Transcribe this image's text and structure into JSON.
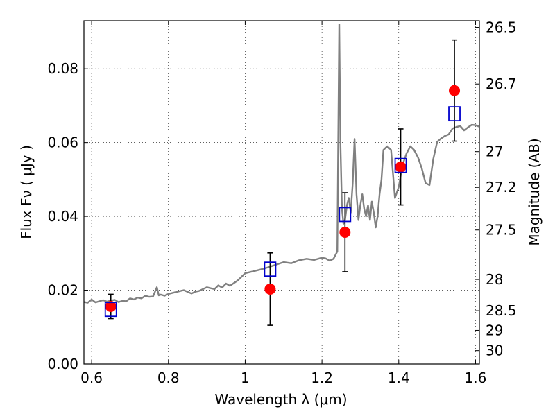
{
  "chart_data": {
    "type": "scatter",
    "xlabel": "Wavelength  λ (μm)",
    "ylabel": "Flux  Fν  ( μJy )",
    "ylabel_right": "Magnitude (AB)",
    "xlim": [
      0.58,
      1.61
    ],
    "ylim": [
      0.0,
      0.093
    ],
    "grid": true,
    "x_ticks": [
      0.6,
      0.8,
      1.0,
      1.2,
      1.4,
      1.6
    ],
    "x_tick_labels": [
      "0.6",
      "0.8",
      "1",
      "1.2",
      "1.4",
      "1.6"
    ],
    "y_ticks": [
      0.0,
      0.02,
      0.04,
      0.06,
      0.08
    ],
    "y_tick_labels": [
      "0.00",
      "0.02",
      "0.04",
      "0.06",
      "0.08"
    ],
    "mag_ticks": [
      26.5,
      26.7,
      27,
      27.2,
      27.5,
      28,
      28.5,
      29,
      30
    ],
    "mag_tick_labels": [
      "26.5",
      "26.7",
      "27",
      "27.2",
      "27.5",
      "28",
      "28.5",
      "29",
      "30"
    ],
    "colors": {
      "model": "#808080",
      "observed": "#ff0000",
      "model_phot": "#0000cc",
      "errorbar": "#000000"
    },
    "series": [
      {
        "name": "model-spectrum",
        "kind": "line",
        "x": [
          0.58,
          0.59,
          0.6,
          0.61,
          0.62,
          0.63,
          0.64,
          0.65,
          0.66,
          0.67,
          0.68,
          0.69,
          0.7,
          0.71,
          0.72,
          0.73,
          0.74,
          0.75,
          0.76,
          0.77,
          0.775,
          0.78,
          0.79,
          0.8,
          0.82,
          0.84,
          0.86,
          0.87,
          0.88,
          0.9,
          0.92,
          0.93,
          0.94,
          0.95,
          0.96,
          0.98,
          1.0,
          1.02,
          1.04,
          1.06,
          1.08,
          1.1,
          1.12,
          1.14,
          1.16,
          1.18,
          1.2,
          1.21,
          1.22,
          1.23,
          1.24,
          1.245,
          1.248,
          1.252,
          1.256,
          1.26,
          1.265,
          1.27,
          1.275,
          1.28,
          1.285,
          1.29,
          1.295,
          1.3,
          1.305,
          1.31,
          1.315,
          1.32,
          1.325,
          1.33,
          1.335,
          1.34,
          1.345,
          1.35,
          1.355,
          1.36,
          1.37,
          1.38,
          1.39,
          1.4,
          1.41,
          1.42,
          1.43,
          1.44,
          1.45,
          1.46,
          1.47,
          1.48,
          1.49,
          1.5,
          1.51,
          1.52,
          1.53,
          1.54,
          1.55,
          1.56,
          1.57,
          1.58,
          1.59,
          1.6,
          1.61
        ],
        "y": [
          0.0168,
          0.0166,
          0.0175,
          0.0167,
          0.017,
          0.0173,
          0.0169,
          0.0172,
          0.0174,
          0.0168,
          0.0171,
          0.017,
          0.0178,
          0.0175,
          0.018,
          0.0178,
          0.0185,
          0.0182,
          0.0183,
          0.0208,
          0.0186,
          0.0188,
          0.0185,
          0.019,
          0.0195,
          0.02,
          0.0191,
          0.0196,
          0.0198,
          0.0208,
          0.0203,
          0.0213,
          0.0207,
          0.0218,
          0.0212,
          0.0226,
          0.0246,
          0.0251,
          0.0256,
          0.0262,
          0.0269,
          0.0276,
          0.0273,
          0.0281,
          0.0285,
          0.0282,
          0.0288,
          0.0286,
          0.028,
          0.0285,
          0.0305,
          0.092,
          0.06,
          0.042,
          0.038,
          0.039,
          0.043,
          0.045,
          0.041,
          0.049,
          0.061,
          0.046,
          0.039,
          0.043,
          0.046,
          0.042,
          0.04,
          0.043,
          0.039,
          0.044,
          0.041,
          0.037,
          0.04,
          0.046,
          0.05,
          0.058,
          0.059,
          0.058,
          0.045,
          0.048,
          0.054,
          0.057,
          0.059,
          0.058,
          0.056,
          0.053,
          0.049,
          0.0485,
          0.0556,
          0.0602,
          0.0611,
          0.0618,
          0.0622,
          0.0638,
          0.0642,
          0.0645,
          0.0633,
          0.0641,
          0.0648,
          0.0647,
          0.0643
        ]
      },
      {
        "name": "observed-flux",
        "kind": "scatter-errorbar",
        "x": [
          0.65,
          1.065,
          1.26,
          1.405,
          1.545
        ],
        "y": [
          0.0156,
          0.0203,
          0.0357,
          0.0534,
          0.0741
        ],
        "yerr": [
          0.0033,
          0.0098,
          0.0107,
          0.0103,
          0.0137
        ]
      },
      {
        "name": "model-photometry",
        "kind": "scatter-square",
        "x": [
          0.65,
          1.065,
          1.26,
          1.405,
          1.545
        ],
        "y": [
          0.0148,
          0.0257,
          0.0405,
          0.0538,
          0.0678
        ]
      }
    ]
  }
}
